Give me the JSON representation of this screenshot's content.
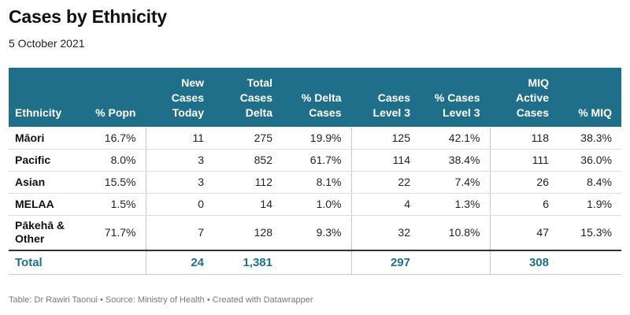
{
  "title": "Cases by Ethnicity",
  "date": "5 October 2021",
  "columns": [
    "Ethnicity",
    "% Popn",
    "New Cases Today",
    "Total Cases Delta",
    "% Delta Cases",
    "Cases Level 3",
    "% Cases Level 3",
    "MIQ Active Cases",
    "% MIQ"
  ],
  "rows": [
    {
      "ethnicity": "Māori",
      "popn": "16.7%",
      "new_today": "11",
      "total_delta": "275",
      "pct_delta": "19.9%",
      "level3": "125",
      "pct_level3": "42.1%",
      "miq_active": "118",
      "pct_miq": "38.3%"
    },
    {
      "ethnicity": "Pacific",
      "popn": "8.0%",
      "new_today": "3",
      "total_delta": "852",
      "pct_delta": "61.7%",
      "level3": "114",
      "pct_level3": "38.4%",
      "miq_active": "111",
      "pct_miq": "36.0%"
    },
    {
      "ethnicity": "Asian",
      "popn": "15.5%",
      "new_today": "3",
      "total_delta": "112",
      "pct_delta": "8.1%",
      "level3": "22",
      "pct_level3": "7.4%",
      "miq_active": "26",
      "pct_miq": "8.4%"
    },
    {
      "ethnicity": "MELAA",
      "popn": "1.5%",
      "new_today": "0",
      "total_delta": "14",
      "pct_delta": "1.0%",
      "level3": "4",
      "pct_level3": "1.3%",
      "miq_active": "6",
      "pct_miq": "1.9%"
    },
    {
      "ethnicity": "Pākehā & Other",
      "popn": "71.7%",
      "new_today": "7",
      "total_delta": "128",
      "pct_delta": "9.3%",
      "level3": "32",
      "pct_level3": "10.8%",
      "miq_active": "47",
      "pct_miq": "15.3%"
    }
  ],
  "total": {
    "label": "Total",
    "new_today": "24",
    "total_delta": "1,381",
    "level3": "297",
    "miq_active": "308"
  },
  "footer": "Table: Dr Rawiri Taonui • Source: Ministry of Health • Created with Datawrapper",
  "colors": {
    "header_bg": "#1f6f8b",
    "total_text": "#1f6f8b"
  }
}
